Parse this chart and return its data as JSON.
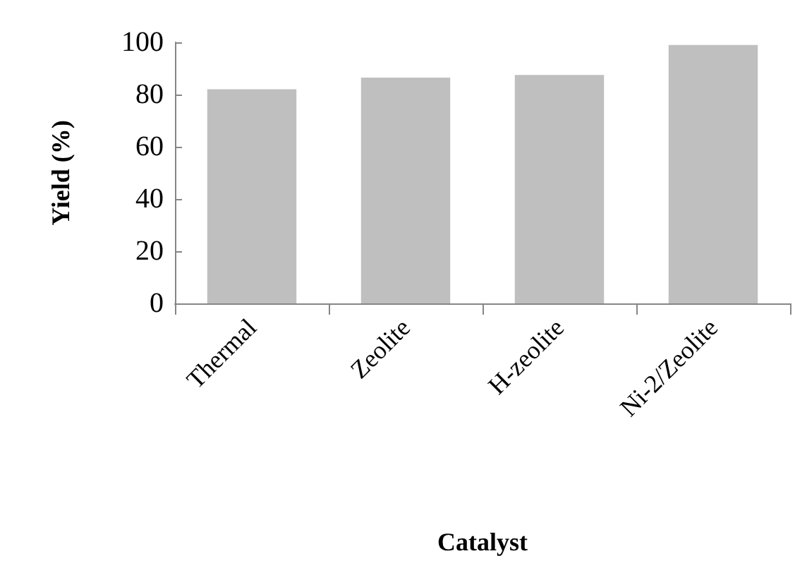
{
  "chart_data": {
    "type": "bar",
    "xlabel": "Catalyst",
    "ylabel": "Yield (%)",
    "categories": [
      "Thermal",
      "Zeolite",
      "H-zeolite",
      "Ni-2/Zeolite"
    ],
    "values": [
      82,
      86.5,
      87.5,
      99
    ],
    "color": "#bfbfbf",
    "ylim": [
      0,
      100
    ],
    "yticks": [
      0,
      20,
      40,
      60,
      80,
      100
    ],
    "grid": false
  }
}
